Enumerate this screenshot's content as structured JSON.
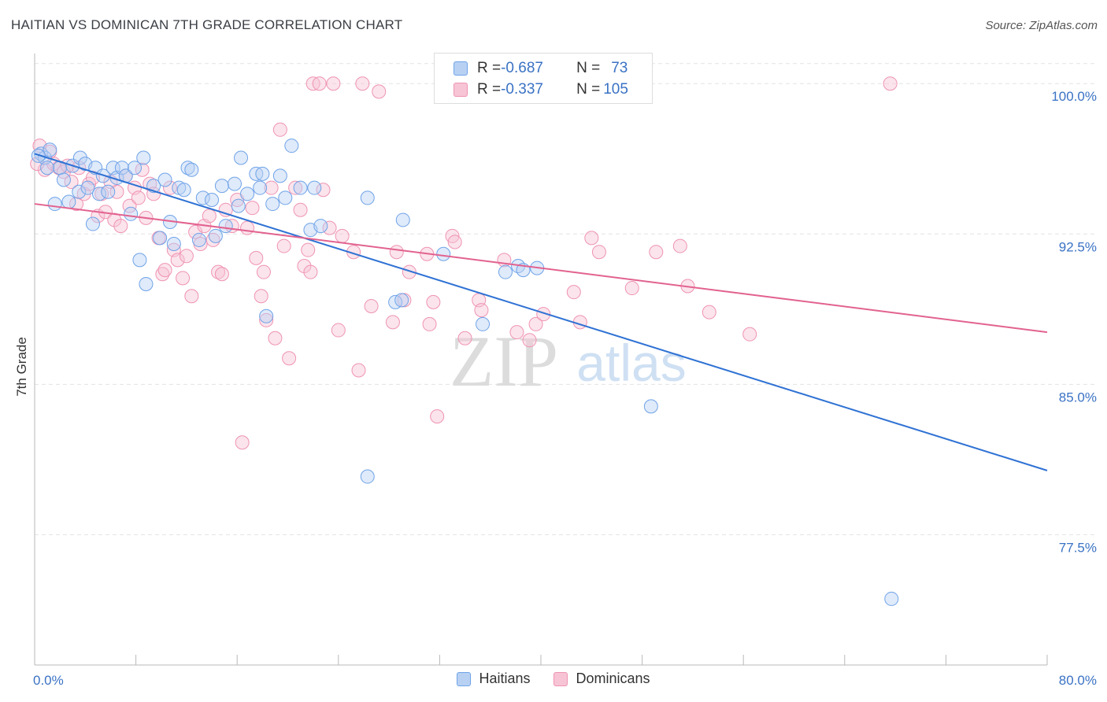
{
  "header": {
    "title": "HAITIAN VS DOMINICAN 7TH GRADE CORRELATION CHART",
    "source": "Source: ZipAtlas.com"
  },
  "legend": {
    "rows": [
      {
        "r_label": "R = ",
        "r_value": "-0.687",
        "n_label": "N = ",
        "n_value": "73"
      },
      {
        "r_label": "R = ",
        "r_value": "-0.337",
        "n_label": "N = ",
        "n_value": "105"
      }
    ]
  },
  "watermark": {
    "zip": "ZIP",
    "atlas": "atlas"
  },
  "colors": {
    "blue": "#6fa3e8",
    "blue_fill": "#b8d1f3",
    "blue_line": "#2f72d4",
    "pink": "#ef93b3",
    "pink_fill": "#f7c4d5",
    "pink_line": "#e2628f",
    "axis_text": "#3a72c4"
  },
  "chart_data": {
    "type": "scatter",
    "title": "HAITIAN VS DOMINICAN 7TH GRADE CORRELATION CHART",
    "ylabel": "7th Grade",
    "xlabel": "",
    "xlim": [
      0,
      80
    ],
    "ylim": [
      71,
      101.5
    ],
    "x_tick_labels": [
      "0.0%",
      "80.0%"
    ],
    "y_ticks": [
      77.5,
      85.0,
      92.5,
      100.0
    ],
    "y_tick_labels": [
      "77.5%",
      "85.0%",
      "92.5%",
      "100.0%"
    ],
    "grid": "horizontal dashed",
    "legend_position": "top-center",
    "series": [
      {
        "name": "Haitians",
        "R": -0.687,
        "N": 73,
        "trend": {
          "x": [
            0,
            80
          ],
          "y": [
            96.5,
            80.7
          ]
        },
        "points": [
          [
            0.5,
            96.5
          ],
          [
            0.8,
            96.3
          ],
          [
            1.2,
            96.7
          ],
          [
            1.6,
            94.0
          ],
          [
            2.0,
            95.8
          ],
          [
            2.3,
            95.2
          ],
          [
            2.7,
            94.1
          ],
          [
            3.0,
            95.9
          ],
          [
            3.5,
            94.6
          ],
          [
            3.6,
            96.3
          ],
          [
            4.0,
            96.0
          ],
          [
            4.2,
            94.8
          ],
          [
            4.6,
            93.0
          ],
          [
            4.8,
            95.8
          ],
          [
            5.1,
            94.5
          ],
          [
            5.4,
            95.4
          ],
          [
            5.8,
            94.6
          ],
          [
            6.2,
            95.8
          ],
          [
            6.5,
            95.3
          ],
          [
            6.9,
            95.8
          ],
          [
            7.2,
            95.4
          ],
          [
            7.6,
            93.5
          ],
          [
            7.9,
            95.8
          ],
          [
            8.3,
            91.2
          ],
          [
            8.6,
            96.3
          ],
          [
            8.8,
            90.0
          ],
          [
            9.4,
            94.9
          ],
          [
            9.9,
            92.3
          ],
          [
            10.3,
            95.2
          ],
          [
            10.7,
            93.1
          ],
          [
            11.0,
            92.0
          ],
          [
            11.4,
            94.8
          ],
          [
            11.8,
            94.7
          ],
          [
            12.1,
            95.8
          ],
          [
            12.4,
            95.7
          ],
          [
            13.0,
            92.2
          ],
          [
            13.3,
            94.3
          ],
          [
            14.0,
            94.2
          ],
          [
            14.3,
            92.4
          ],
          [
            14.8,
            94.9
          ],
          [
            15.1,
            92.9
          ],
          [
            15.8,
            95.0
          ],
          [
            16.1,
            93.9
          ],
          [
            16.3,
            96.3
          ],
          [
            16.8,
            94.5
          ],
          [
            17.5,
            95.5
          ],
          [
            17.8,
            94.8
          ],
          [
            18.0,
            95.5
          ],
          [
            18.3,
            88.4
          ],
          [
            18.8,
            94.0
          ],
          [
            19.4,
            95.4
          ],
          [
            19.8,
            94.3
          ],
          [
            20.3,
            96.9
          ],
          [
            21.0,
            94.8
          ],
          [
            21.8,
            92.7
          ],
          [
            22.1,
            94.8
          ],
          [
            22.6,
            92.9
          ],
          [
            26.3,
            94.3
          ],
          [
            26.3,
            80.4
          ],
          [
            28.5,
            89.1
          ],
          [
            29.0,
            89.2
          ],
          [
            29.1,
            93.2
          ],
          [
            32.3,
            91.5
          ],
          [
            32.6,
            100.0
          ],
          [
            35.4,
            88.0
          ],
          [
            37.2,
            90.6
          ],
          [
            38.2,
            90.9
          ],
          [
            38.6,
            90.7
          ],
          [
            39.7,
            90.8
          ],
          [
            48.7,
            83.9
          ],
          [
            67.7,
            74.3
          ],
          [
            0.3,
            96.4
          ],
          [
            1.0,
            95.8
          ]
        ]
      },
      {
        "name": "Dominicans",
        "R": -0.337,
        "N": 105,
        "trend": {
          "x": [
            0,
            80
          ],
          "y": [
            94.0,
            87.6
          ]
        },
        "points": [
          [
            0.4,
            96.9
          ],
          [
            0.8,
            95.7
          ],
          [
            1.2,
            96.6
          ],
          [
            1.5,
            96.0
          ],
          [
            1.9,
            95.8
          ],
          [
            2.3,
            95.6
          ],
          [
            2.6,
            95.9
          ],
          [
            2.9,
            95.1
          ],
          [
            3.3,
            94.0
          ],
          [
            3.5,
            95.8
          ],
          [
            3.9,
            94.5
          ],
          [
            4.3,
            95.0
          ],
          [
            4.6,
            95.3
          ],
          [
            5.0,
            93.4
          ],
          [
            5.3,
            94.5
          ],
          [
            5.6,
            93.6
          ],
          [
            6.0,
            95.1
          ],
          [
            6.3,
            93.2
          ],
          [
            6.5,
            94.6
          ],
          [
            6.8,
            92.9
          ],
          [
            7.2,
            95.4
          ],
          [
            7.5,
            93.9
          ],
          [
            7.9,
            94.8
          ],
          [
            8.2,
            94.3
          ],
          [
            8.5,
            95.7
          ],
          [
            8.8,
            93.3
          ],
          [
            9.1,
            95.0
          ],
          [
            9.4,
            94.5
          ],
          [
            9.8,
            92.3
          ],
          [
            10.1,
            90.5
          ],
          [
            10.3,
            90.7
          ],
          [
            10.7,
            94.8
          ],
          [
            11.0,
            91.7
          ],
          [
            11.3,
            91.2
          ],
          [
            11.7,
            90.3
          ],
          [
            12.0,
            91.4
          ],
          [
            12.4,
            89.4
          ],
          [
            12.7,
            92.6
          ],
          [
            13.1,
            92.0
          ],
          [
            13.4,
            92.9
          ],
          [
            13.8,
            93.4
          ],
          [
            14.1,
            92.2
          ],
          [
            14.5,
            90.6
          ],
          [
            14.8,
            90.5
          ],
          [
            15.1,
            93.7
          ],
          [
            15.6,
            92.9
          ],
          [
            16.0,
            94.2
          ],
          [
            16.4,
            82.1
          ],
          [
            16.8,
            92.8
          ],
          [
            17.2,
            93.8
          ],
          [
            17.5,
            91.3
          ],
          [
            17.9,
            89.4
          ],
          [
            18.1,
            90.6
          ],
          [
            18.3,
            88.2
          ],
          [
            18.7,
            94.8
          ],
          [
            19.0,
            87.3
          ],
          [
            19.4,
            97.7
          ],
          [
            19.7,
            91.9
          ],
          [
            20.1,
            86.3
          ],
          [
            20.6,
            94.8
          ],
          [
            21.0,
            93.7
          ],
          [
            21.3,
            90.9
          ],
          [
            21.6,
            91.7
          ],
          [
            21.8,
            90.6
          ],
          [
            22.0,
            100.0
          ],
          [
            22.5,
            100.0
          ],
          [
            22.8,
            94.7
          ],
          [
            23.3,
            92.8
          ],
          [
            23.6,
            100.0
          ],
          [
            24.0,
            87.7
          ],
          [
            24.3,
            92.4
          ],
          [
            25.2,
            91.6
          ],
          [
            25.6,
            85.7
          ],
          [
            25.9,
            100.0
          ],
          [
            26.6,
            88.9
          ],
          [
            27.2,
            99.6
          ],
          [
            28.3,
            88.1
          ],
          [
            28.6,
            91.6
          ],
          [
            29.2,
            89.2
          ],
          [
            29.6,
            90.6
          ],
          [
            31.0,
            91.5
          ],
          [
            31.2,
            88.0
          ],
          [
            31.5,
            89.1
          ],
          [
            31.8,
            83.4
          ],
          [
            33.0,
            92.4
          ],
          [
            33.2,
            92.1
          ],
          [
            34.0,
            87.3
          ],
          [
            35.1,
            89.2
          ],
          [
            35.3,
            88.7
          ],
          [
            35.8,
            100.0
          ],
          [
            37.1,
            91.2
          ],
          [
            38.1,
            87.6
          ],
          [
            39.1,
            87.2
          ],
          [
            39.6,
            88.0
          ],
          [
            40.2,
            88.5
          ],
          [
            42.6,
            89.6
          ],
          [
            43.1,
            88.1
          ],
          [
            44.0,
            92.3
          ],
          [
            44.6,
            91.6
          ],
          [
            47.2,
            89.8
          ],
          [
            49.1,
            91.6
          ],
          [
            51.0,
            91.9
          ],
          [
            51.6,
            89.9
          ],
          [
            53.3,
            88.6
          ],
          [
            56.5,
            87.5
          ],
          [
            67.6,
            100.0
          ],
          [
            0.2,
            96.0
          ]
        ]
      }
    ]
  },
  "bottom_legend": {
    "items": [
      "Haitians",
      "Dominicans"
    ]
  }
}
